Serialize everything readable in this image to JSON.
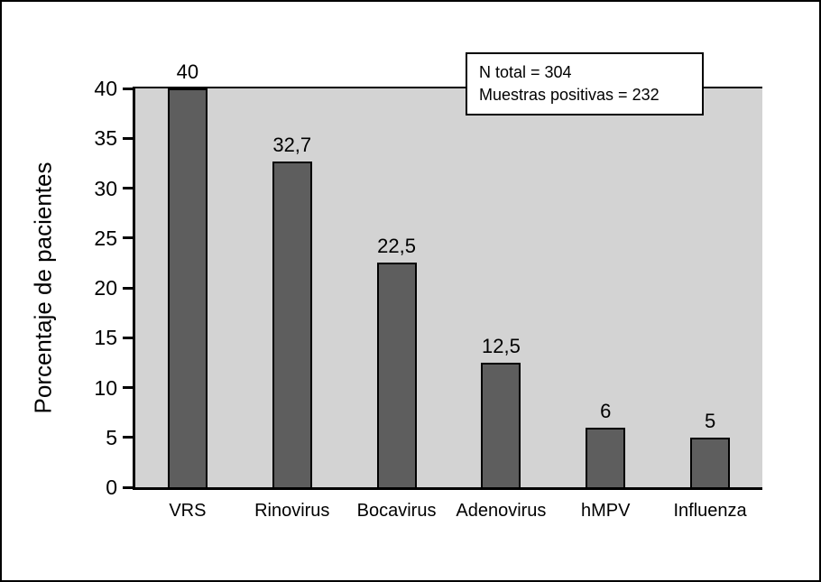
{
  "figure": {
    "annotation": {
      "line1": "N total = 304",
      "line2": "Muestras positivas = 232"
    }
  },
  "chart_data": {
    "type": "bar",
    "categories": [
      "VRS",
      "Rinovirus",
      "Bocavirus",
      "Adenovirus",
      "hMPV",
      "Influenza"
    ],
    "values": [
      40,
      32.7,
      22.5,
      12.5,
      6,
      5
    ],
    "value_labels": [
      "40",
      "32,7",
      "22,5",
      "12,5",
      "6",
      "5"
    ],
    "title": "",
    "xlabel": "",
    "ylabel": "Porcentaje de pacientes",
    "ylim": [
      0,
      40
    ],
    "yticks": [
      0,
      5,
      10,
      15,
      20,
      25,
      30,
      35,
      40
    ],
    "grid": false,
    "legend_position": "none",
    "annotations": [
      "N total = 304",
      "Muestras positivas = 232"
    ],
    "colors": {
      "bar_fill": "#5e5e5e",
      "bar_border": "#000000",
      "plot_background": "#d3d3d3",
      "figure_border": "#000000"
    }
  }
}
